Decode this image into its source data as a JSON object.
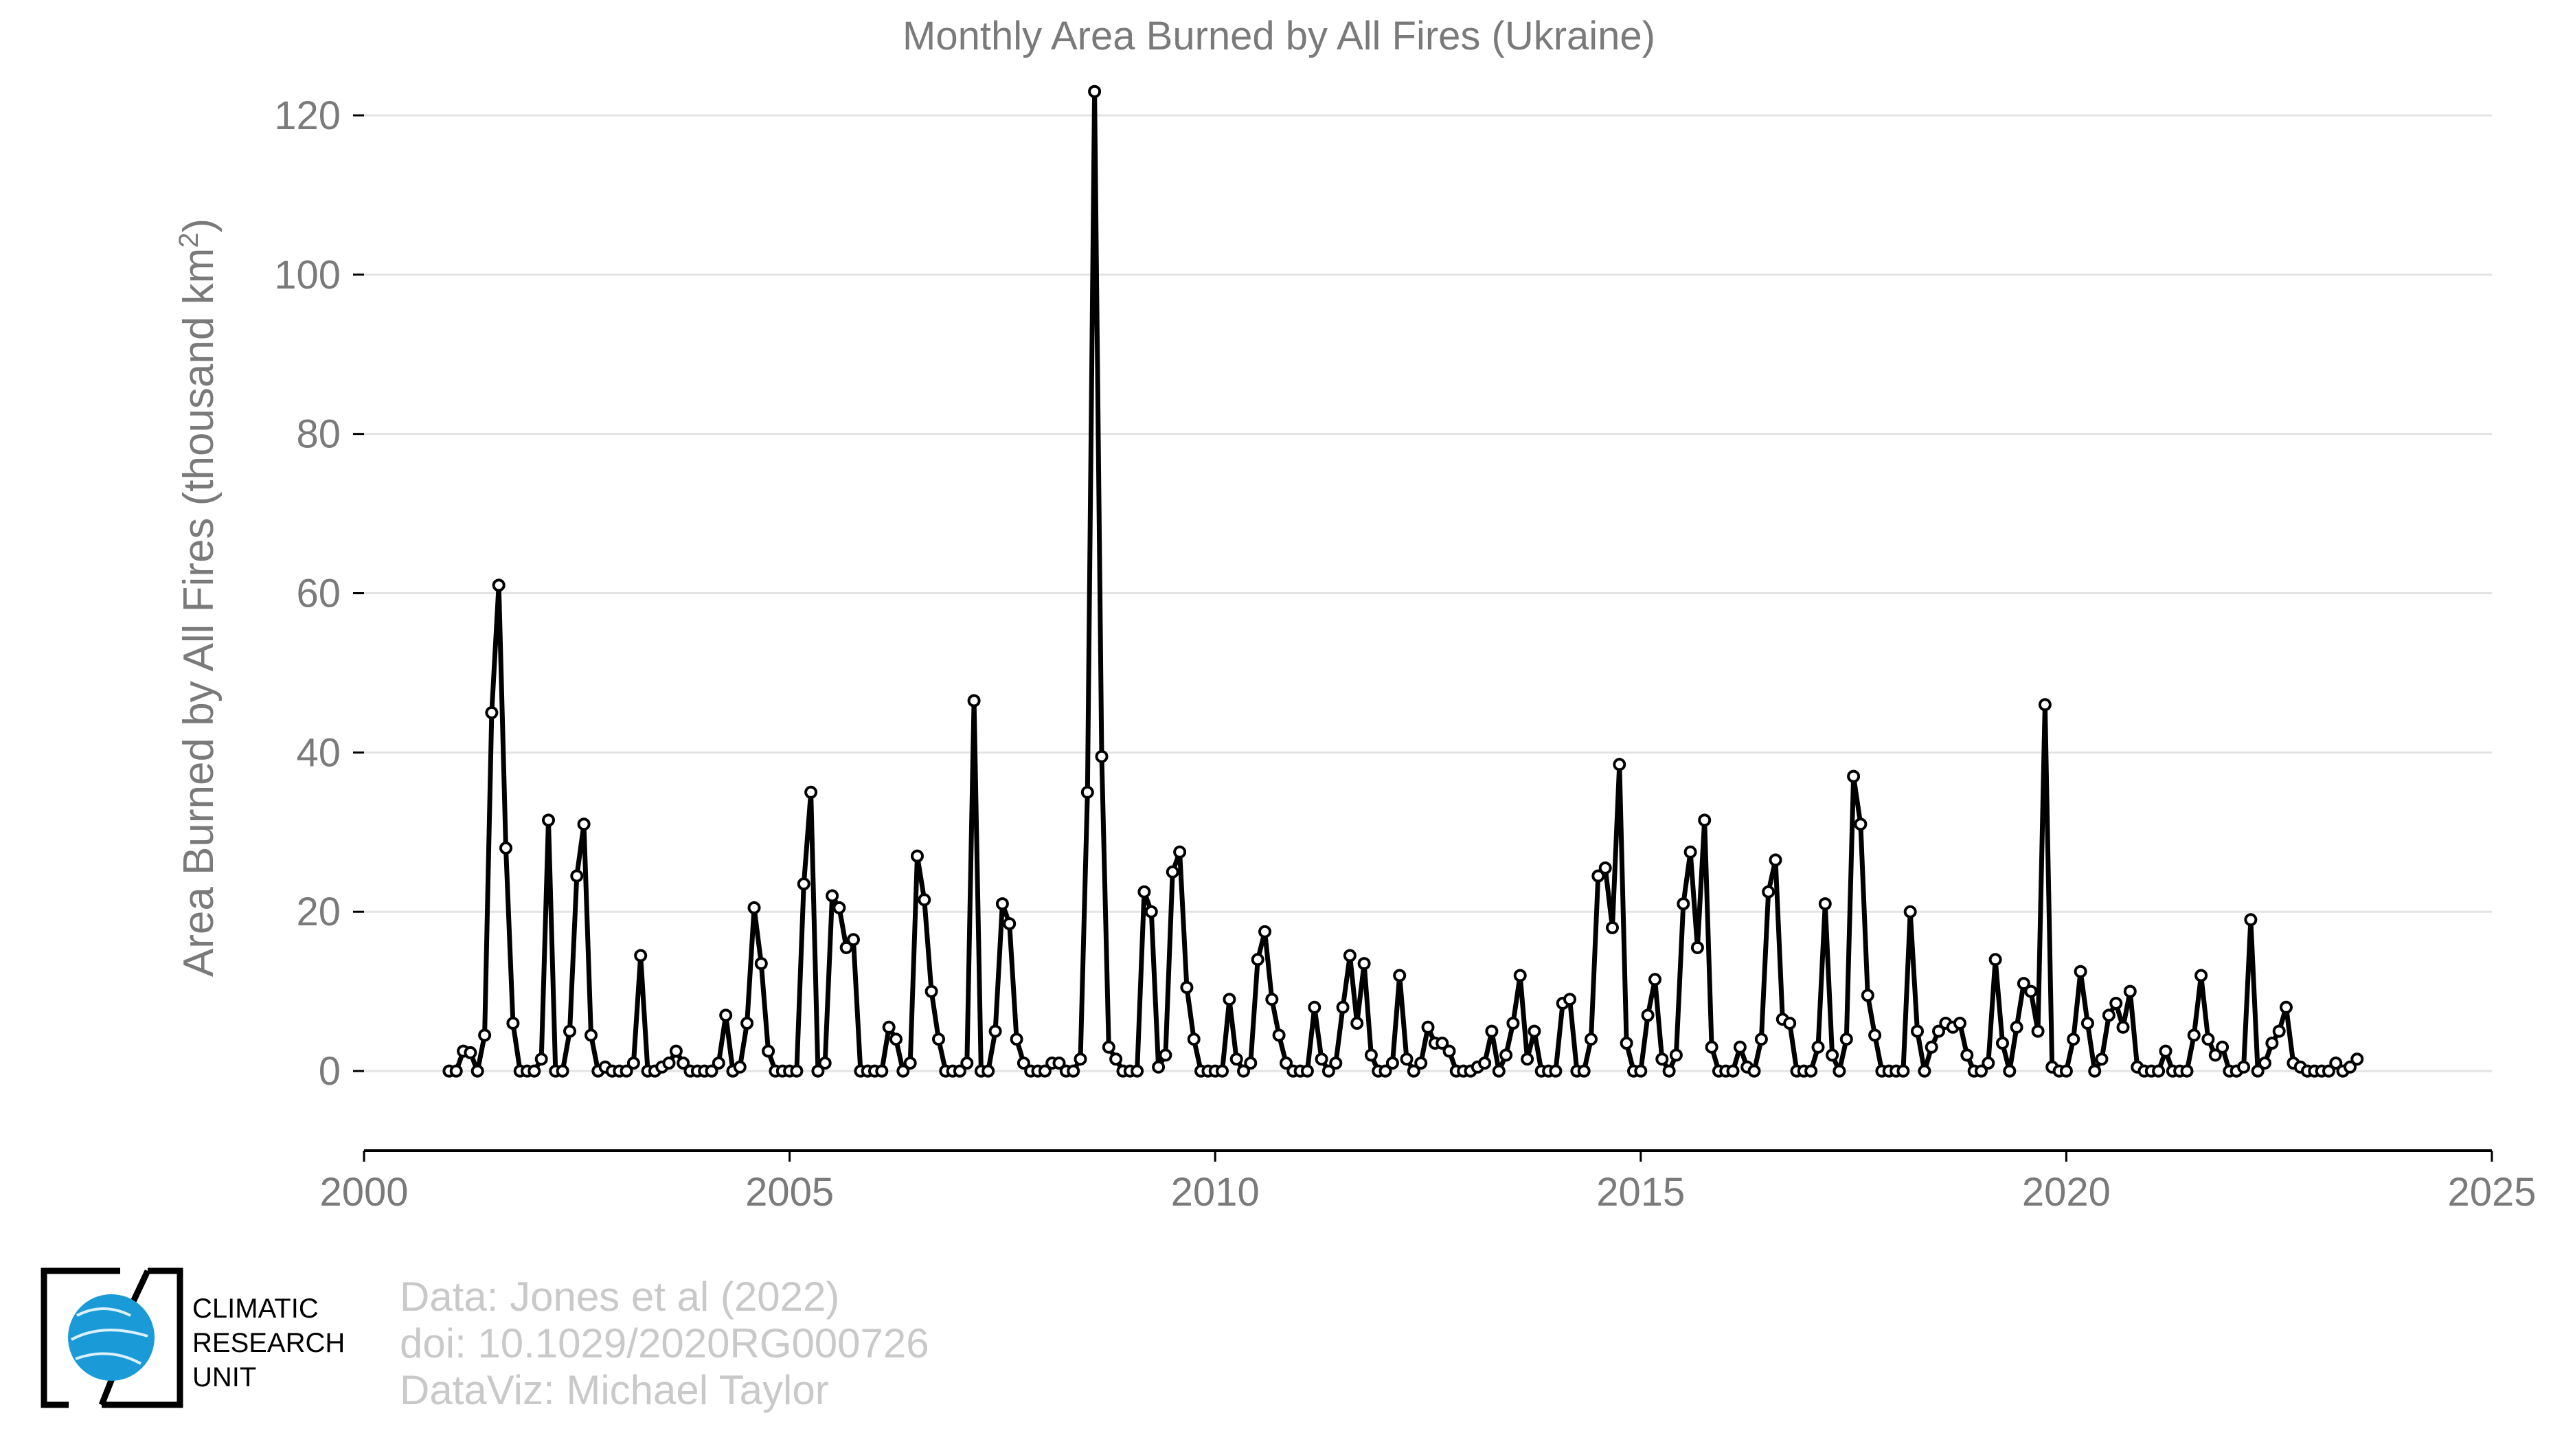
{
  "chart_data": {
    "type": "line",
    "title": "Monthly Area Burned by All Fires (Ukraine)",
    "xlabel": "",
    "ylabel": "Area Burned by All Fires (thousand km",
    "ylabel_sup": "2",
    "ylabel_end": ")",
    "xlim": [
      2000,
      2025
    ],
    "ylim": [
      -10,
      125
    ],
    "x_ticks": [
      2000,
      2005,
      2010,
      2015,
      2020,
      2025
    ],
    "y_ticks": [
      0,
      20,
      40,
      60,
      80,
      100,
      120
    ],
    "grid": "horizontal",
    "line_color": "#000000",
    "marker_fill": "#ffffff",
    "series": [
      {
        "x_start": 2001.0,
        "x_step_months": 1,
        "values": [
          0,
          0,
          2.5,
          2.3,
          0,
          4.5,
          45,
          61,
          28,
          6,
          0,
          0,
          0,
          1.5,
          31.5,
          0,
          0,
          5,
          24.5,
          31,
          4.5,
          0,
          0.5,
          0,
          0,
          0,
          1,
          14.5,
          0,
          0,
          0.5,
          1,
          2.5,
          1,
          0,
          0,
          0,
          0,
          1,
          7,
          0,
          0.5,
          6,
          20.5,
          13.5,
          2.5,
          0,
          0,
          0,
          0,
          23.5,
          35,
          0,
          1,
          22,
          20.5,
          15.5,
          16.5,
          0,
          0,
          0,
          0,
          5.5,
          4,
          0,
          1,
          27,
          21.5,
          10,
          4,
          0,
          0,
          0,
          1,
          46.5,
          0,
          0,
          5,
          21,
          18.5,
          4,
          1,
          0,
          0,
          0,
          1,
          1,
          0,
          0,
          1.5,
          35,
          123,
          39.5,
          3,
          1.5,
          0,
          0,
          0,
          22.5,
          20,
          0.5,
          2,
          25,
          27.5,
          10.5,
          4,
          0,
          0,
          0,
          0,
          9,
          1.5,
          0,
          1,
          14,
          17.5,
          9,
          4.5,
          1,
          0,
          0,
          0,
          8,
          1.5,
          0,
          1,
          8,
          14.5,
          6,
          13.5,
          2,
          0,
          0,
          1,
          12,
          1.5,
          0,
          1,
          5.5,
          3.5,
          3.5,
          2.5,
          0,
          0,
          0,
          0.5,
          1,
          5,
          0,
          2,
          6,
          12,
          1.5,
          5,
          0,
          0,
          0,
          8.5,
          9,
          0,
          0,
          4,
          24.5,
          25.5,
          18,
          38.5,
          3.5,
          0,
          0,
          7,
          11.5,
          1.5,
          0,
          2,
          21,
          27.5,
          15.5,
          31.5,
          3,
          0,
          0,
          0,
          3,
          0.5,
          0,
          4,
          22.5,
          26.5,
          6.5,
          6,
          0,
          0,
          0,
          3,
          21,
          2,
          0,
          4,
          37,
          31,
          9.5,
          4.5,
          0,
          0,
          0,
          0,
          20,
          5,
          0,
          3,
          5,
          6,
          5.5,
          6,
          2,
          0,
          0,
          1,
          14,
          3.5,
          0,
          5.5,
          11,
          10,
          5,
          46,
          0.5,
          0,
          0,
          4,
          12.5,
          6,
          0,
          1.5,
          7,
          8.5,
          5.5,
          10,
          0.5,
          0,
          0,
          0,
          2.5,
          0,
          0,
          0,
          4.5,
          12,
          4,
          2,
          3,
          0,
          0,
          0.5,
          19,
          0,
          1,
          3.5,
          5,
          8,
          1,
          0.5,
          0,
          0,
          0,
          0,
          1,
          0,
          0.5,
          1.5
        ]
      }
    ]
  },
  "credits": {
    "line1": "Data: Jones et al (2022)",
    "line2": "doi: 10.1029/2020RG000726",
    "line3": "DataViz: Michael Taylor"
  },
  "logo": {
    "line1": "CLIMATIC",
    "line2": "RESEARCH",
    "line3": "UNIT",
    "globe_color": "#1a9bd7"
  }
}
